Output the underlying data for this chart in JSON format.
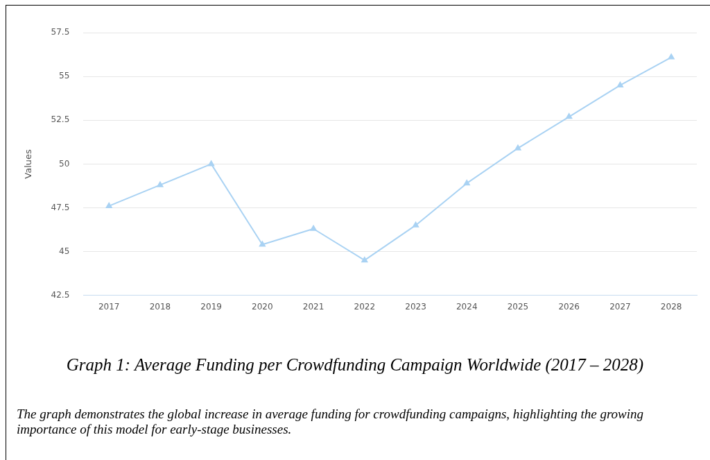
{
  "chart_data": {
    "type": "line",
    "title": "Graph 1: Average Funding per Crowdfunding Campaign Worldwide (2017 – 2028)",
    "ylabel": "Values",
    "categories": [
      "2017",
      "2018",
      "2019",
      "2020",
      "2021",
      "2022",
      "2023",
      "2024",
      "2025",
      "2026",
      "2027",
      "2028"
    ],
    "series": [
      {
        "color": "#a9d2f3",
        "values": [
          47.6,
          48.8,
          50.0,
          45.4,
          46.3,
          44.5,
          46.5,
          48.9,
          50.9,
          52.7,
          54.5,
          56.1
        ]
      }
    ],
    "ylim": [
      42.5,
      57.5
    ],
    "yticks": [
      42.5,
      45,
      47.5,
      50,
      52.5,
      55,
      57.5
    ],
    "grid": "y",
    "marker": "triangle",
    "legend": false,
    "annotations": [
      "The graph demonstrates the global increase in average funding for crowdfunding campaigns, highlighting the growing importance of this model for early-stage businesses."
    ]
  }
}
